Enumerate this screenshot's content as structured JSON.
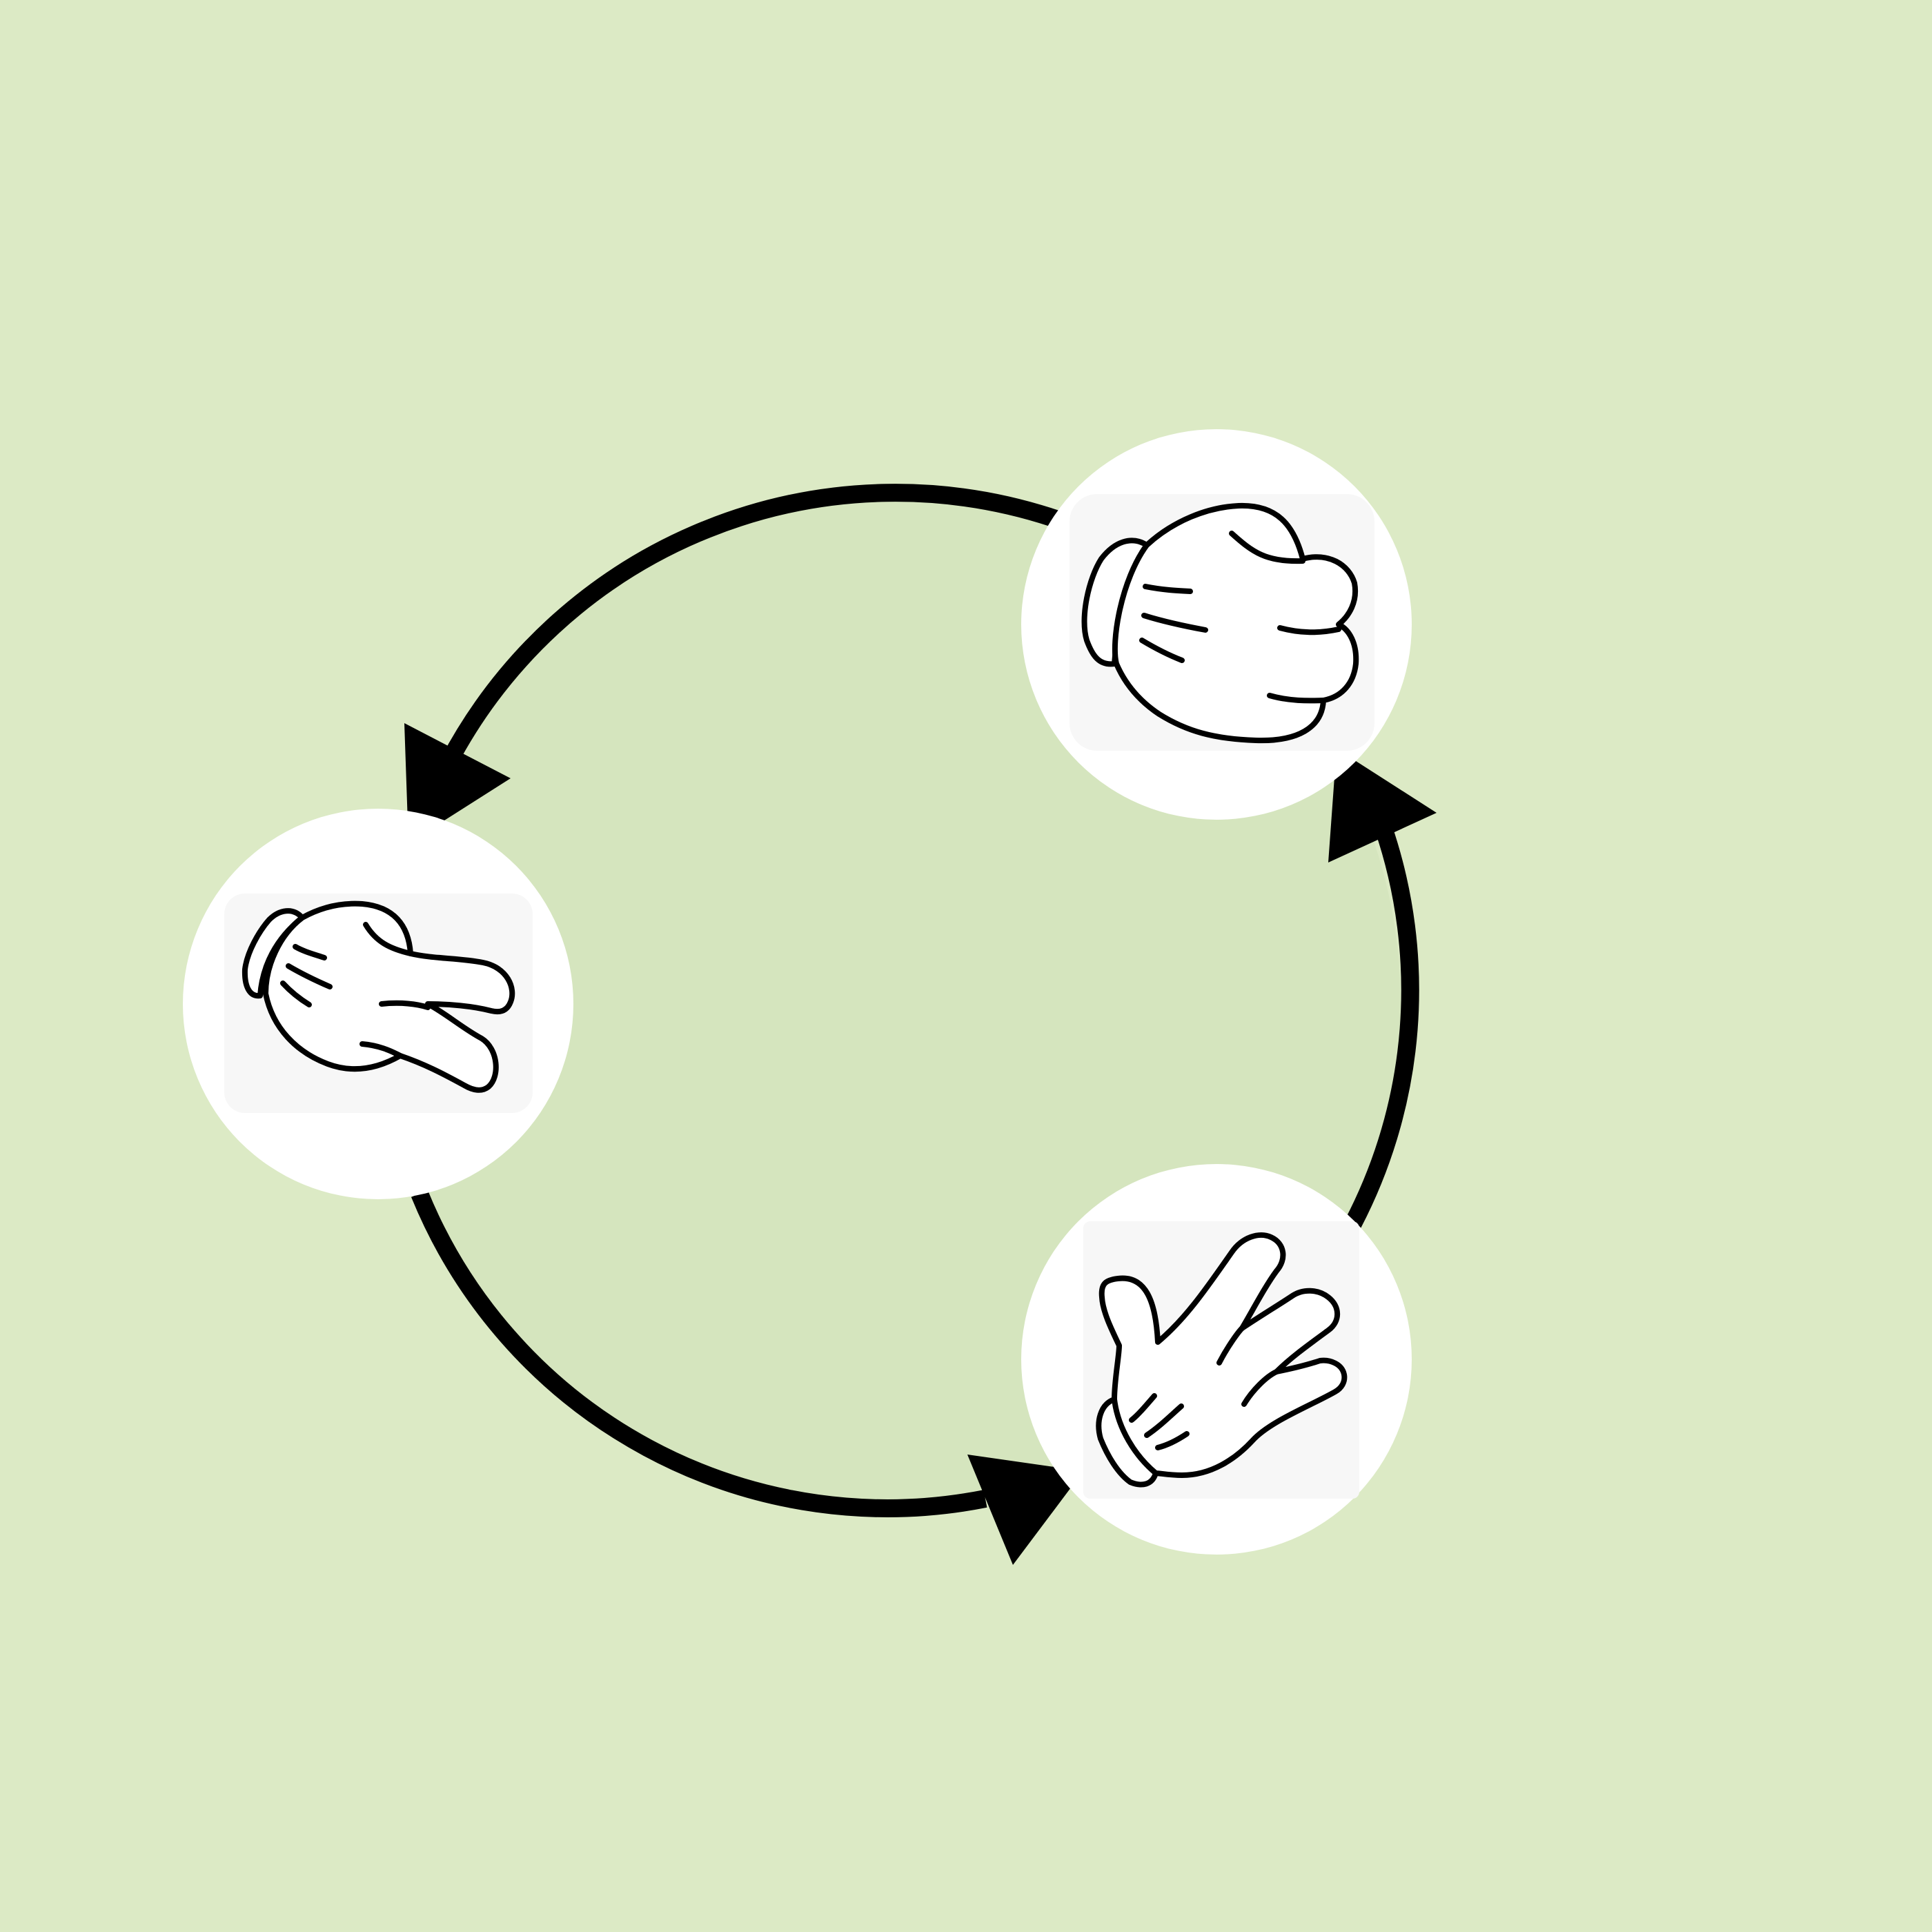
{
  "colors": {
    "background": "#dceac5",
    "cycle_fill": "#d5e5be",
    "node_fill": "#ffffff",
    "icon_tile": "#f7f7f7",
    "stroke": "#000000",
    "glove": "#ffffff"
  },
  "nodes": [
    {
      "id": "rock",
      "icon": "fist-glove-icon"
    },
    {
      "id": "scissors",
      "icon": "scissors-glove-icon"
    },
    {
      "id": "paper",
      "icon": "open-hand-glove-icon"
    }
  ],
  "edges": [
    {
      "from": "rock",
      "to": "scissors"
    },
    {
      "from": "scissors",
      "to": "paper"
    },
    {
      "from": "paper",
      "to": "rock"
    }
  ]
}
